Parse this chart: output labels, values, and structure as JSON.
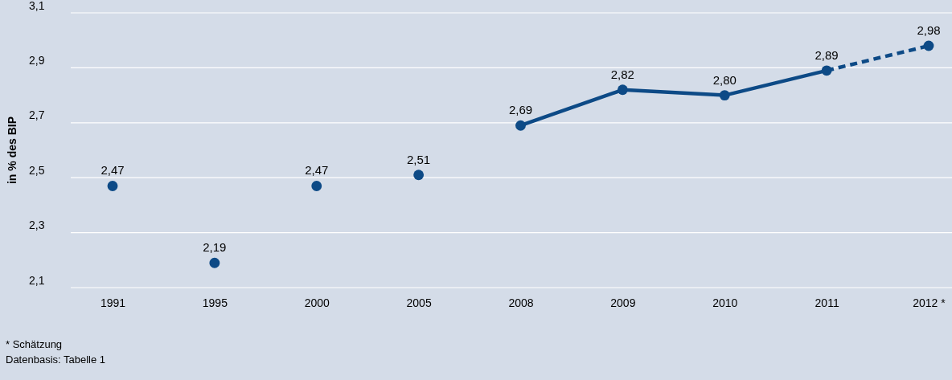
{
  "chart_data": {
    "type": "scatter",
    "ylabel": "in % des BIP",
    "categories": [
      "1991",
      "1995",
      "2000",
      "2005",
      "2008",
      "2009",
      "2010",
      "2011",
      "2012 *"
    ],
    "ylim": [
      2.1,
      3.1
    ],
    "yticks": [
      {
        "value": 2.1,
        "label": "2,1"
      },
      {
        "value": 2.3,
        "label": "2,3"
      },
      {
        "value": 2.5,
        "label": "2,5"
      },
      {
        "value": 2.7,
        "label": "2,7"
      },
      {
        "value": 2.9,
        "label": "2,9"
      },
      {
        "value": 3.1,
        "label": "3,1"
      }
    ],
    "grid": "y",
    "series": [
      {
        "color": "#0d4a86",
        "marker": "circle",
        "values": [
          2.47,
          2.19,
          2.47,
          2.51,
          2.69,
          2.82,
          2.8,
          2.89,
          2.98
        ],
        "value_labels": [
          "2,47",
          "2,19",
          "2,47",
          "2,51",
          "2,69",
          "2,82",
          "2,80",
          "2,89",
          "2,98"
        ]
      },
      {
        "type": "line",
        "color": "#0d4a86",
        "line_style": "solid",
        "values": [
          null,
          null,
          null,
          null,
          2.69,
          2.82,
          2.8,
          2.89,
          null
        ]
      },
      {
        "type": "line",
        "color": "#0d4a86",
        "line_style": "dashed",
        "values": [
          null,
          null,
          null,
          null,
          null,
          null,
          null,
          2.89,
          2.98
        ]
      }
    ],
    "annotations": [
      "* Schätzung",
      "Datenbasis: Tabelle 1"
    ]
  }
}
